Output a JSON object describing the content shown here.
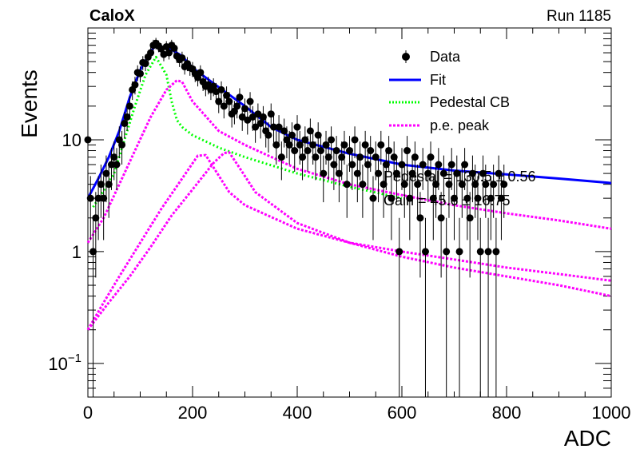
{
  "header": {
    "experiment": "CaloX",
    "run": "Run 1185"
  },
  "fit_text": {
    "line1": "Pedestal = 130.5 ± 0.56",
    "line2": "Gain = 45.6 ± 16.75"
  },
  "legend": [
    {
      "label": "Data",
      "color": "#000000",
      "style": "marker"
    },
    {
      "label": "Fit",
      "color": "#0000ff",
      "style": "solid"
    },
    {
      "label": "Pedestal CB",
      "color": "#00ff00",
      "style": "dotted"
    },
    {
      "label": "p.e. peak",
      "color": "#ff00ff",
      "style": "dotted"
    }
  ],
  "chart_data": {
    "type": "scatter",
    "title": "",
    "xlabel": "ADC",
    "ylabel": "Events",
    "xlim": [
      0,
      1000
    ],
    "ylim": [
      0.05,
      100
    ],
    "yscale": "log",
    "grid": false,
    "legend_position": "top-right",
    "x_ticks": [
      0,
      200,
      400,
      600,
      800,
      1000
    ],
    "y_ticks": [
      {
        "value": 0.1,
        "base": "10",
        "exp": "−1"
      },
      {
        "value": 1,
        "base": "1",
        "exp": ""
      },
      {
        "value": 10,
        "base": "10",
        "exp": ""
      }
    ],
    "data_points": [
      [
        0,
        10
      ],
      [
        5,
        3
      ],
      [
        10,
        1
      ],
      [
        15,
        2
      ],
      [
        20,
        3
      ],
      [
        25,
        4
      ],
      [
        30,
        3
      ],
      [
        35,
        5
      ],
      [
        40,
        4
      ],
      [
        45,
        6
      ],
      [
        50,
        7
      ],
      [
        55,
        6
      ],
      [
        60,
        10
      ],
      [
        65,
        9
      ],
      [
        70,
        14
      ],
      [
        75,
        16
      ],
      [
        80,
        20
      ],
      [
        85,
        28
      ],
      [
        90,
        31
      ],
      [
        95,
        40
      ],
      [
        100,
        39
      ],
      [
        105,
        49
      ],
      [
        110,
        48
      ],
      [
        115,
        55
      ],
      [
        120,
        60
      ],
      [
        125,
        70
      ],
      [
        130,
        73
      ],
      [
        135,
        69
      ],
      [
        140,
        65
      ],
      [
        145,
        58
      ],
      [
        150,
        68
      ],
      [
        155,
        60
      ],
      [
        160,
        70
      ],
      [
        165,
        66
      ],
      [
        170,
        56
      ],
      [
        175,
        52
      ],
      [
        180,
        54
      ],
      [
        185,
        45
      ],
      [
        190,
        48
      ],
      [
        195,
        44
      ],
      [
        200,
        43
      ],
      [
        205,
        39
      ],
      [
        210,
        36
      ],
      [
        215,
        40
      ],
      [
        220,
        33
      ],
      [
        225,
        30
      ],
      [
        230,
        31
      ],
      [
        235,
        28
      ],
      [
        240,
        30
      ],
      [
        245,
        27
      ],
      [
        250,
        22
      ],
      [
        255,
        28
      ],
      [
        260,
        20
      ],
      [
        265,
        25
      ],
      [
        270,
        22
      ],
      [
        275,
        17
      ],
      [
        280,
        18
      ],
      [
        285,
        20
      ],
      [
        290,
        24
      ],
      [
        295,
        16
      ],
      [
        300,
        19
      ],
      [
        305,
        15
      ],
      [
        310,
        22
      ],
      [
        315,
        16
      ],
      [
        320,
        13
      ],
      [
        325,
        17
      ],
      [
        330,
        14
      ],
      [
        335,
        16
      ],
      [
        340,
        12
      ],
      [
        345,
        11
      ],
      [
        350,
        17
      ],
      [
        355,
        13
      ],
      [
        360,
        9
      ],
      [
        365,
        13
      ],
      [
        370,
        7
      ],
      [
        375,
        12
      ],
      [
        380,
        10
      ],
      [
        385,
        9
      ],
      [
        390,
        11
      ],
      [
        395,
        8
      ],
      [
        400,
        13
      ],
      [
        405,
        9
      ],
      [
        410,
        7
      ],
      [
        415,
        10
      ],
      [
        420,
        8
      ],
      [
        425,
        12
      ],
      [
        430,
        9
      ],
      [
        435,
        7
      ],
      [
        440,
        11
      ],
      [
        445,
        8
      ],
      [
        450,
        5
      ],
      [
        455,
        9
      ],
      [
        460,
        7
      ],
      [
        465,
        10
      ],
      [
        470,
        6
      ],
      [
        475,
        8
      ],
      [
        480,
        5
      ],
      [
        485,
        7
      ],
      [
        490,
        9
      ],
      [
        495,
        4
      ],
      [
        500,
        8
      ],
      [
        505,
        6
      ],
      [
        510,
        10
      ],
      [
        515,
        5
      ],
      [
        520,
        7
      ],
      [
        525,
        4
      ],
      [
        530,
        9
      ],
      [
        535,
        6
      ],
      [
        540,
        8
      ],
      [
        545,
        3
      ],
      [
        550,
        7
      ],
      [
        555,
        5
      ],
      [
        560,
        9
      ],
      [
        565,
        4
      ],
      [
        570,
        6
      ],
      [
        575,
        8
      ],
      [
        580,
        3
      ],
      [
        585,
        7
      ],
      [
        590,
        5
      ],
      [
        595,
        1
      ],
      [
        600,
        6
      ],
      [
        605,
        4
      ],
      [
        610,
        8
      ],
      [
        615,
        3
      ],
      [
        620,
        5
      ],
      [
        625,
        7
      ],
      [
        630,
        4
      ],
      [
        635,
        2
      ],
      [
        640,
        6
      ],
      [
        645,
        1
      ],
      [
        650,
        5
      ],
      [
        655,
        7
      ],
      [
        660,
        3
      ],
      [
        665,
        4
      ],
      [
        670,
        6
      ],
      [
        675,
        2
      ],
      [
        680,
        5
      ],
      [
        685,
        1
      ],
      [
        690,
        4
      ],
      [
        695,
        6
      ],
      [
        700,
        3
      ],
      [
        705,
        5
      ],
      [
        710,
        1
      ],
      [
        715,
        4
      ],
      [
        720,
        6
      ],
      [
        725,
        3
      ],
      [
        730,
        2
      ],
      [
        735,
        5
      ],
      [
        740,
        4
      ],
      [
        745,
        3
      ],
      [
        750,
        1
      ],
      [
        755,
        5
      ],
      [
        760,
        4
      ],
      [
        765,
        1
      ],
      [
        770,
        3
      ],
      [
        775,
        4
      ],
      [
        780,
        1
      ],
      [
        785,
        5
      ],
      [
        790,
        3
      ],
      [
        795,
        4
      ]
    ],
    "series": [
      {
        "name": "Fit",
        "color": "#0000ff",
        "x": [
          0,
          20,
          40,
          60,
          80,
          100,
          120,
          130,
          140,
          160,
          180,
          200,
          240,
          300,
          350,
          400,
          500,
          600,
          700,
          800,
          900,
          1000
        ],
        "y": [
          3,
          4.5,
          7,
          12,
          24,
          42,
          62,
          70,
          68,
          64,
          56,
          44,
          32,
          20,
          13,
          10,
          7.5,
          6,
          5.3,
          4.9,
          4.5,
          4.1
        ]
      },
      {
        "name": "Pedestal CB",
        "color": "#00ff00",
        "x": [
          10,
          30,
          50,
          70,
          90,
          110,
          130,
          150,
          160,
          170,
          180,
          200,
          250,
          300,
          400,
          500,
          600
        ],
        "y": [
          2.5,
          3.5,
          5,
          10,
          20,
          38,
          55,
          38,
          22,
          15,
          13,
          11,
          8.5,
          7,
          5,
          3.8,
          3
        ]
      },
      {
        "name": "p.e. peak",
        "color": "#ff00ff",
        "x": [
          0,
          30,
          60,
          90,
          120,
          150,
          170,
          180,
          200,
          250,
          300,
          400,
          500,
          600,
          700,
          800,
          900,
          1000
        ],
        "y": [
          1.2,
          2,
          4,
          8,
          16,
          28,
          34,
          33,
          22,
          12,
          9,
          5.5,
          4,
          3.2,
          2.6,
          2.2,
          1.9,
          1.6
        ]
      },
      {
        "name": "p.e. peak",
        "color": "#ff00ff",
        "x": [
          0,
          30,
          60,
          100,
          140,
          180,
          210,
          225,
          245,
          270,
          300,
          400,
          500,
          600,
          700,
          800,
          900,
          1000
        ],
        "y": [
          0.2,
          0.35,
          0.6,
          1.2,
          2.4,
          4.5,
          7.2,
          7.3,
          5.2,
          3.4,
          2.6,
          1.6,
          1.2,
          1,
          0.85,
          0.72,
          0.63,
          0.55
        ]
      },
      {
        "name": "p.e. peak",
        "color": "#ff00ff",
        "x": [
          0,
          40,
          80,
          120,
          160,
          200,
          240,
          260,
          270,
          290,
          320,
          400,
          500,
          600,
          700,
          800,
          900,
          1000
        ],
        "y": [
          0.2,
          0.35,
          0.6,
          1.1,
          2.1,
          3.6,
          6.2,
          7.6,
          7.7,
          5.6,
          3.4,
          1.8,
          1.2,
          0.9,
          0.72,
          0.6,
          0.5,
          0.4
        ]
      }
    ]
  }
}
